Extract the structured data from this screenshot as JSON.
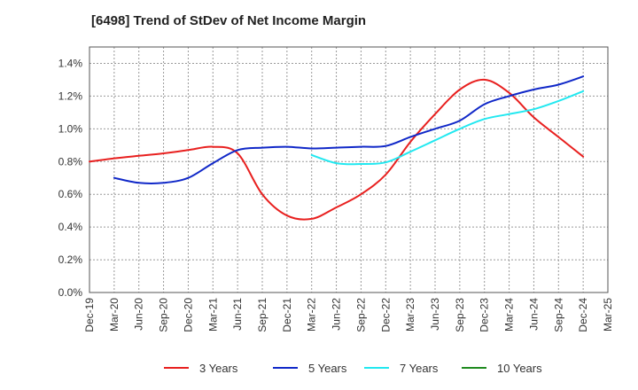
{
  "chart_data": {
    "type": "line",
    "title": "[6498]  Trend of StDev of Net Income Margin",
    "xlabel": "",
    "ylabel": "",
    "x": [
      "Dec-19",
      "Mar-20",
      "Jun-20",
      "Sep-20",
      "Dec-20",
      "Mar-21",
      "Jun-21",
      "Sep-21",
      "Dec-21",
      "Mar-22",
      "Jun-22",
      "Sep-22",
      "Dec-22",
      "Mar-23",
      "Jun-23",
      "Sep-23",
      "Dec-23",
      "Mar-24",
      "Jun-24",
      "Sep-24",
      "Dec-24",
      "Mar-25"
    ],
    "y_ticks": [
      "0.0%",
      "0.2%",
      "0.4%",
      "0.6%",
      "0.8%",
      "1.0%",
      "1.2%",
      "1.4%"
    ],
    "ylim": [
      0,
      1.5
    ],
    "grid": true,
    "legend_position": "bottom",
    "series": [
      {
        "name": "3 Years",
        "color": "#e8201f",
        "values": [
          0.8,
          0.82,
          0.835,
          0.85,
          0.87,
          0.89,
          0.85,
          0.6,
          0.47,
          0.45,
          0.52,
          0.6,
          0.72,
          0.92,
          1.09,
          1.24,
          1.3,
          1.22,
          1.07,
          0.95,
          0.83,
          null
        ]
      },
      {
        "name": "5 Years",
        "color": "#1028c8",
        "values": [
          null,
          0.7,
          0.67,
          0.67,
          0.7,
          0.79,
          0.87,
          0.885,
          0.89,
          0.88,
          0.885,
          0.89,
          0.895,
          0.95,
          1.0,
          1.05,
          1.15,
          1.2,
          1.24,
          1.27,
          1.32,
          null
        ]
      },
      {
        "name": "7 Years",
        "color": "#22e8f0",
        "values": [
          null,
          null,
          null,
          null,
          null,
          null,
          null,
          null,
          null,
          0.84,
          0.79,
          0.785,
          0.795,
          0.86,
          0.93,
          1.0,
          1.06,
          1.09,
          1.12,
          1.17,
          1.23,
          null
        ]
      },
      {
        "name": "10 Years",
        "color": "#1f8a1f",
        "values": [
          null,
          null,
          null,
          null,
          null,
          null,
          null,
          null,
          null,
          null,
          null,
          null,
          null,
          null,
          null,
          null,
          null,
          null,
          null,
          null,
          null,
          null
        ]
      }
    ]
  }
}
